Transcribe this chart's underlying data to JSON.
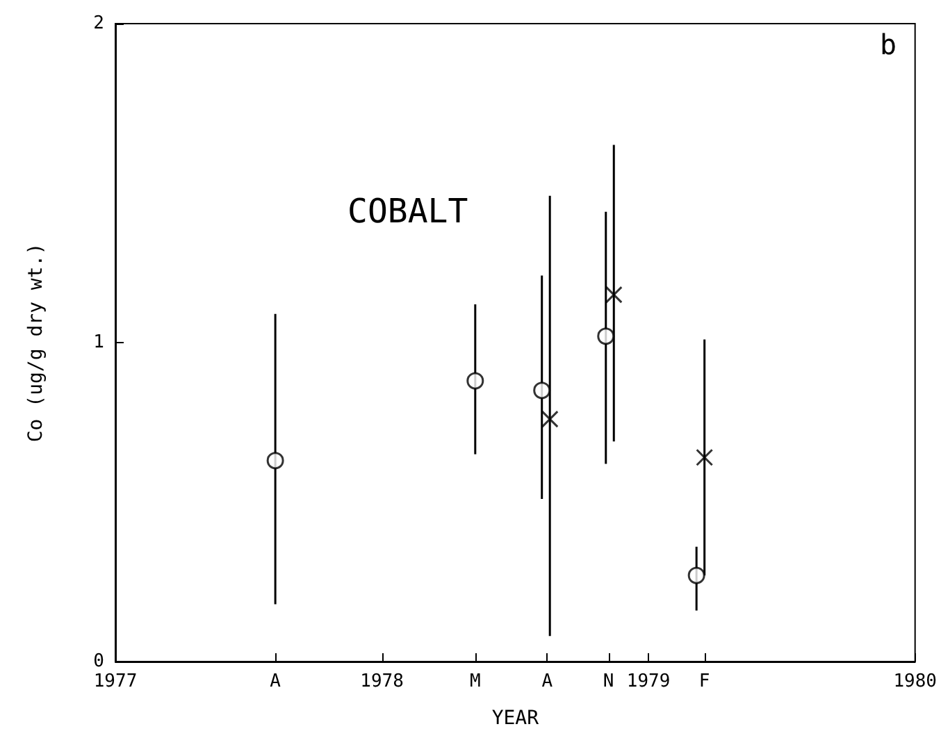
{
  "chart_data": {
    "type": "scatter",
    "xlabel": "YEAR",
    "ylabel": "Co (ug/g dry wt.)",
    "annotations": [
      "COBALT",
      "b"
    ],
    "xlim": [
      1977,
      1980
    ],
    "xticks": [
      1977,
      {
        "value": 1977.6,
        "label": "A"
      },
      1978,
      {
        "value": 1978.35,
        "label": "M"
      },
      {
        "value": 1978.62,
        "label": "A"
      },
      {
        "value": 1978.85,
        "label": "N"
      },
      1979,
      {
        "value": 1979.21,
        "label": "F"
      },
      1980
    ],
    "ylim": [
      0,
      2
    ],
    "yticks": [
      0,
      1,
      2
    ],
    "grid": false,
    "series": [
      {
        "color": "#000000",
        "marker": "circle",
        "x": [
          1977.6,
          1978.35,
          1978.6,
          1978.84,
          1979.18
        ],
        "values": [
          0.63,
          0.88,
          0.85,
          1.02,
          0.27
        ],
        "errors": [
          [
            0.18,
            1.09
          ],
          [
            0.65,
            1.12
          ],
          [
            0.51,
            1.21
          ],
          [
            0.62,
            1.41
          ],
          [
            0.16,
            0.36
          ]
        ]
      },
      {
        "color": "#000000",
        "marker": "cross",
        "x": [
          1978.63,
          1978.87,
          1979.21
        ],
        "values": [
          0.76,
          1.15,
          0.64
        ],
        "errors": [
          [
            0.08,
            1.46
          ],
          [
            0.69,
            1.62
          ],
          [
            0.27,
            1.01
          ]
        ]
      }
    ]
  }
}
